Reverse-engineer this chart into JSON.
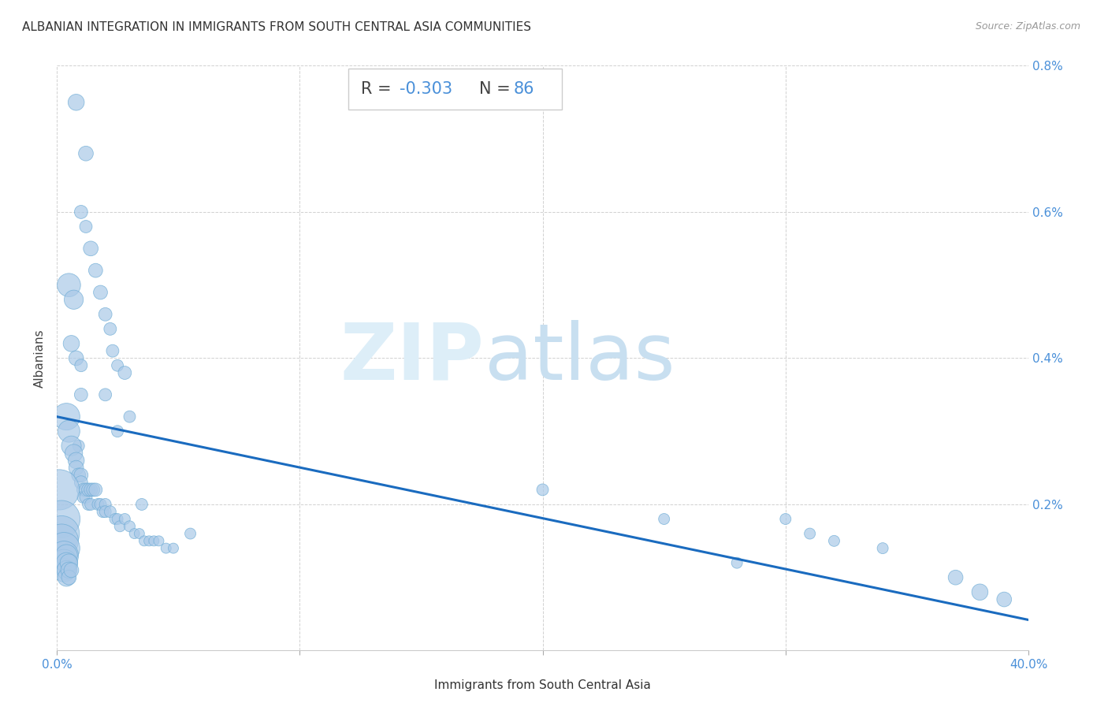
{
  "title": "ALBANIAN INTEGRATION IN IMMIGRANTS FROM SOUTH CENTRAL ASIA COMMUNITIES",
  "source": "Source: ZipAtlas.com",
  "xlabel": "Immigrants from South Central Asia",
  "ylabel": "Albanians",
  "R": -0.303,
  "N": 86,
  "xlim": [
    0.0,
    0.4
  ],
  "ylim": [
    0.0,
    0.008
  ],
  "xtick_positions": [
    0.0,
    0.4
  ],
  "xtick_labels": [
    "0.0%",
    "40.0%"
  ],
  "yticks": [
    0.0,
    0.002,
    0.004,
    0.006,
    0.008
  ],
  "ytick_labels": [
    "",
    "0.2%",
    "0.4%",
    "0.6%",
    "0.8%"
  ],
  "scatter_color": "#aac9e8",
  "scatter_edge_color": "#6aaad4",
  "line_color": "#1a6bbf",
  "background_color": "#ffffff",
  "watermark_zip": "ZIP",
  "watermark_atlas": "atlas",
  "points": [
    [
      0.008,
      0.0075,
      20
    ],
    [
      0.012,
      0.0068,
      18
    ],
    [
      0.01,
      0.006,
      16
    ],
    [
      0.012,
      0.0058,
      15
    ],
    [
      0.014,
      0.0055,
      18
    ],
    [
      0.016,
      0.0052,
      17
    ],
    [
      0.018,
      0.0049,
      17
    ],
    [
      0.02,
      0.0046,
      16
    ],
    [
      0.022,
      0.0044,
      15
    ],
    [
      0.023,
      0.0041,
      15
    ],
    [
      0.025,
      0.0039,
      14
    ],
    [
      0.028,
      0.0038,
      16
    ],
    [
      0.01,
      0.0035,
      16
    ],
    [
      0.02,
      0.0035,
      15
    ],
    [
      0.03,
      0.0032,
      14
    ],
    [
      0.025,
      0.003,
      14
    ],
    [
      0.035,
      0.002,
      14
    ],
    [
      0.055,
      0.0016,
      13
    ],
    [
      0.005,
      0.005,
      30
    ],
    [
      0.007,
      0.0048,
      24
    ],
    [
      0.006,
      0.0042,
      20
    ],
    [
      0.008,
      0.004,
      18
    ],
    [
      0.01,
      0.0039,
      15
    ],
    [
      0.009,
      0.0028,
      14
    ],
    [
      0.004,
      0.0032,
      35
    ],
    [
      0.005,
      0.003,
      28
    ],
    [
      0.006,
      0.0028,
      25
    ],
    [
      0.007,
      0.0027,
      22
    ],
    [
      0.008,
      0.0026,
      20
    ],
    [
      0.008,
      0.0025,
      18
    ],
    [
      0.009,
      0.0024,
      17
    ],
    [
      0.01,
      0.0024,
      17
    ],
    [
      0.01,
      0.0023,
      16
    ],
    [
      0.011,
      0.0022,
      16
    ],
    [
      0.011,
      0.0021,
      15
    ],
    [
      0.012,
      0.0022,
      16
    ],
    [
      0.012,
      0.0021,
      15
    ],
    [
      0.013,
      0.0022,
      16
    ],
    [
      0.013,
      0.002,
      14
    ],
    [
      0.014,
      0.0022,
      16
    ],
    [
      0.014,
      0.002,
      14
    ],
    [
      0.015,
      0.0022,
      16
    ],
    [
      0.016,
      0.0022,
      16
    ],
    [
      0.017,
      0.002,
      14
    ],
    [
      0.018,
      0.002,
      14
    ],
    [
      0.019,
      0.0019,
      14
    ],
    [
      0.02,
      0.002,
      14
    ],
    [
      0.02,
      0.0019,
      14
    ],
    [
      0.022,
      0.0019,
      14
    ],
    [
      0.024,
      0.0018,
      13
    ],
    [
      0.025,
      0.0018,
      13
    ],
    [
      0.026,
      0.0017,
      13
    ],
    [
      0.028,
      0.0018,
      13
    ],
    [
      0.03,
      0.0017,
      13
    ],
    [
      0.032,
      0.0016,
      12
    ],
    [
      0.034,
      0.0016,
      12
    ],
    [
      0.036,
      0.0015,
      12
    ],
    [
      0.038,
      0.0015,
      12
    ],
    [
      0.04,
      0.0015,
      12
    ],
    [
      0.042,
      0.0015,
      12
    ],
    [
      0.045,
      0.0014,
      12
    ],
    [
      0.048,
      0.0014,
      12
    ],
    [
      0.001,
      0.0022,
      55
    ],
    [
      0.002,
      0.0018,
      50
    ],
    [
      0.002,
      0.0016,
      48
    ],
    [
      0.002,
      0.0015,
      45
    ],
    [
      0.003,
      0.0014,
      42
    ],
    [
      0.003,
      0.0013,
      38
    ],
    [
      0.003,
      0.0012,
      35
    ],
    [
      0.003,
      0.0011,
      30
    ],
    [
      0.004,
      0.0013,
      28
    ],
    [
      0.004,
      0.0012,
      26
    ],
    [
      0.004,
      0.0011,
      24
    ],
    [
      0.004,
      0.001,
      22
    ],
    [
      0.005,
      0.0012,
      22
    ],
    [
      0.005,
      0.0011,
      20
    ],
    [
      0.005,
      0.001,
      18
    ],
    [
      0.006,
      0.0011,
      18
    ],
    [
      0.2,
      0.0022,
      14
    ],
    [
      0.25,
      0.0018,
      13
    ],
    [
      0.28,
      0.0012,
      13
    ],
    [
      0.3,
      0.0018,
      13
    ],
    [
      0.31,
      0.0016,
      13
    ],
    [
      0.32,
      0.0015,
      13
    ],
    [
      0.34,
      0.0014,
      13
    ],
    [
      0.37,
      0.001,
      18
    ],
    [
      0.38,
      0.0008,
      20
    ],
    [
      0.39,
      0.0007,
      18
    ]
  ],
  "line_x0": 0.0,
  "line_y0": 0.0032,
  "line_x1": 0.4,
  "line_y1": 0.00042,
  "title_fontsize": 11,
  "axis_label_fontsize": 11,
  "tick_fontsize": 11,
  "annotation_fontsize": 15
}
